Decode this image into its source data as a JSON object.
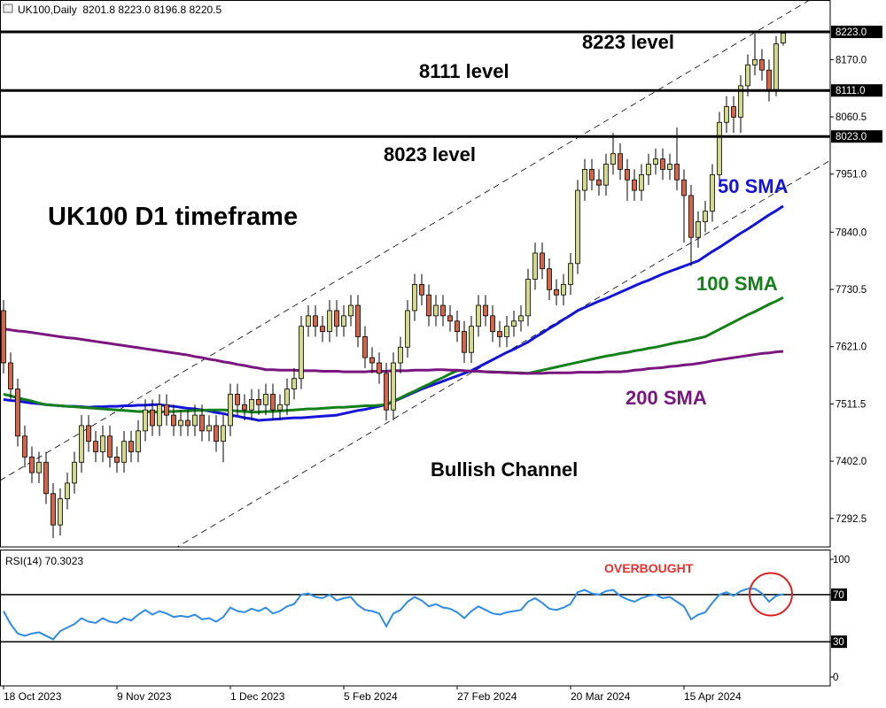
{
  "chart_data": {
    "type": "candlestick",
    "title": "UK100,Daily  8201.8 8223.0 8196.8 8220.5",
    "annotation": "UK100 D1 timeframe",
    "channel_label": "Bullish Channel",
    "categories": [
      "18 Oct 2023",
      null,
      null,
      null,
      null,
      null,
      null,
      null,
      null,
      null,
      null,
      null,
      null,
      null,
      null,
      null,
      "9 Nov 2023",
      null,
      null,
      null,
      null,
      null,
      null,
      null,
      null,
      null,
      null,
      null,
      null,
      null,
      null,
      null,
      "1 Dec 2023",
      null,
      null,
      null,
      null,
      null,
      null,
      null,
      null,
      null,
      null,
      null,
      null,
      null,
      null,
      null,
      "5 Feb 2024",
      null,
      null,
      null,
      null,
      null,
      null,
      null,
      null,
      null,
      null,
      null,
      null,
      null,
      null,
      null,
      "27 Feb 2024",
      null,
      null,
      null,
      null,
      null,
      null,
      null,
      null,
      null,
      null,
      null,
      null,
      null,
      null,
      null,
      "20 Mar 2024",
      null,
      null,
      null,
      null,
      null,
      null,
      null,
      null,
      null,
      null,
      null,
      null,
      null,
      null,
      null,
      "15 Apr 2024",
      null,
      null,
      null,
      null,
      null,
      null,
      null,
      null,
      null,
      null,
      null,
      null,
      null,
      null
    ],
    "open": [
      7690,
      7590,
      7540,
      7450,
      7410,
      7380,
      7400,
      7340,
      7280,
      7330,
      7360,
      7400,
      7470,
      7440,
      7420,
      7450,
      7410,
      7400,
      7440,
      7420,
      7460,
      7500,
      7470,
      7510,
      7490,
      7470,
      7480,
      7470,
      7490,
      7460,
      7470,
      7440,
      7470,
      7530,
      7510,
      7500,
      7520,
      7510,
      7530,
      7500,
      7510,
      7540,
      7560,
      7660,
      7680,
      7660,
      7650,
      7690,
      7660,
      7680,
      7700,
      7640,
      7600,
      7590,
      7570,
      7500,
      7590,
      7620,
      7690,
      7740,
      7720,
      7680,
      7700,
      7680,
      7670,
      7650,
      7610,
      7660,
      7700,
      7680,
      7650,
      7640,
      7660,
      7670,
      7680,
      7750,
      7800,
      7770,
      7730,
      7720,
      7740,
      7780,
      7920,
      7960,
      7940,
      7930,
      7970,
      7990,
      7960,
      7940,
      7920,
      7950,
      7970,
      7980,
      7960,
      7970,
      7940,
      7910,
      7830,
      7860,
      7880,
      7950,
      8050,
      8080,
      8060,
      8120,
      8160,
      8170,
      8150,
      8110,
      8201.8
    ],
    "high": [
      7710,
      7610,
      7560,
      7470,
      7430,
      7420,
      7420,
      7360,
      7350,
      7380,
      7420,
      7490,
      7490,
      7460,
      7470,
      7470,
      7430,
      7460,
      7460,
      7480,
      7520,
      7520,
      7530,
      7530,
      7510,
      7500,
      7500,
      7510,
      7510,
      7490,
      7490,
      7490,
      7550,
      7550,
      7530,
      7540,
      7540,
      7550,
      7550,
      7530,
      7560,
      7580,
      7680,
      7700,
      7700,
      7680,
      7710,
      7710,
      7700,
      7720,
      7720,
      7660,
      7620,
      7610,
      7590,
      7610,
      7640,
      7710,
      7760,
      7760,
      7740,
      7720,
      7720,
      7700,
      7690,
      7670,
      7680,
      7720,
      7720,
      7700,
      7670,
      7680,
      7690,
      7700,
      7770,
      7820,
      7820,
      7790,
      7750,
      7760,
      7800,
      7940,
      7980,
      7980,
      7960,
      7990,
      8030,
      8010,
      7980,
      7960,
      7970,
      7990,
      8000,
      8000,
      7990,
      8040,
      7960,
      7930,
      7880,
      7900,
      7970,
      8070,
      8100,
      8100,
      8140,
      8180,
      8220,
      8190,
      8170,
      8215,
      8223.0
    ],
    "low": [
      7570,
      7520,
      7430,
      7390,
      7360,
      7360,
      7320,
      7255,
      7260,
      7310,
      7340,
      7380,
      7420,
      7400,
      7400,
      7390,
      7380,
      7380,
      7400,
      7400,
      7440,
      7450,
      7450,
      7470,
      7450,
      7450,
      7450,
      7450,
      7440,
      7440,
      7420,
      7400,
      7450,
      7490,
      7480,
      7480,
      7490,
      7490,
      7480,
      7480,
      7490,
      7520,
      7540,
      7640,
      7640,
      7630,
      7630,
      7640,
      7640,
      7660,
      7620,
      7580,
      7570,
      7550,
      7480,
      7480,
      7570,
      7600,
      7670,
      7700,
      7660,
      7660,
      7660,
      7650,
      7630,
      7590,
      7590,
      7640,
      7660,
      7630,
      7620,
      7620,
      7640,
      7650,
      7660,
      7730,
      7750,
      7710,
      7700,
      7700,
      7720,
      7760,
      7900,
      7920,
      7910,
      7910,
      7950,
      7940,
      7900,
      7900,
      7900,
      7930,
      7950,
      7940,
      7940,
      7920,
      7820,
      7775,
      7810,
      7840,
      7860,
      7930,
      8030,
      8030,
      8030,
      8100,
      8140,
      8130,
      8090,
      8100,
      8196.8
    ],
    "close": [
      7590,
      7540,
      7450,
      7410,
      7380,
      7400,
      7340,
      7280,
      7330,
      7360,
      7400,
      7470,
      7440,
      7420,
      7450,
      7410,
      7400,
      7440,
      7420,
      7460,
      7500,
      7470,
      7510,
      7490,
      7470,
      7480,
      7470,
      7490,
      7460,
      7470,
      7440,
      7470,
      7530,
      7510,
      7500,
      7520,
      7510,
      7530,
      7500,
      7510,
      7540,
      7560,
      7660,
      7680,
      7660,
      7650,
      7690,
      7660,
      7680,
      7700,
      7640,
      7600,
      7590,
      7570,
      7500,
      7590,
      7620,
      7690,
      7740,
      7720,
      7680,
      7700,
      7680,
      7670,
      7650,
      7610,
      7660,
      7700,
      7680,
      7650,
      7640,
      7660,
      7670,
      7680,
      7750,
      7800,
      7770,
      7730,
      7720,
      7740,
      7780,
      7920,
      7960,
      7940,
      7930,
      7970,
      7990,
      7960,
      7940,
      7920,
      7950,
      7970,
      7980,
      7960,
      7970,
      7940,
      7910,
      7830,
      7860,
      7880,
      7950,
      8050,
      8080,
      8060,
      8120,
      8160,
      8170,
      8150,
      8110,
      8200,
      8220.5
    ],
    "up_color": "#d3d98a",
    "down_color": "#d2664a",
    "series": [
      {
        "name": "50 SMA",
        "color": "#1414d8",
        "values": [
          7520,
          7518,
          7517,
          7515,
          7513,
          7512,
          7510,
          7509,
          7508,
          7507,
          7507,
          7506,
          7505,
          7506,
          7506,
          7507,
          7507,
          7508,
          7508,
          7509,
          7509,
          7510,
          7510,
          7508,
          7507,
          7505,
          7503,
          7502,
          7500,
          7498,
          7495,
          7493,
          7490,
          7488,
          7485,
          7483,
          7480,
          7481,
          7482,
          7483,
          7484,
          7485,
          7485,
          7486,
          7487,
          7488,
          7489,
          7490,
          7493,
          7496,
          7499,
          7501,
          7504,
          7507,
          7510,
          7516,
          7522,
          7528,
          7534,
          7540,
          7545,
          7550,
          7555,
          7560,
          7565,
          7570,
          7575,
          7582,
          7589,
          7596,
          7603,
          7610,
          7616,
          7623,
          7630,
          7639,
          7647,
          7656,
          7664,
          7673,
          7681,
          7690,
          7696,
          7702,
          7708,
          7713,
          7719,
          7725,
          7731,
          7737,
          7743,
          7748,
          7754,
          7760,
          7765,
          7770,
          7775,
          7780,
          7785,
          7794,
          7803,
          7811,
          7820,
          7829,
          7838,
          7846,
          7855,
          7864,
          7873,
          7881,
          7890
        ]
      },
      {
        "name": "100 SMA",
        "color": "#14801a",
        "values": [
          7530,
          7527,
          7523,
          7520,
          7517,
          7513,
          7510,
          7509,
          7508,
          7507,
          7506,
          7505,
          7504,
          7503,
          7502,
          7501,
          7500,
          7499,
          7498,
          7497,
          7497,
          7496,
          7496,
          7497,
          7497,
          7498,
          7498,
          7499,
          7499,
          7500,
          7500,
          7500,
          7499,
          7498,
          7497,
          7496,
          7496,
          7497,
          7497,
          7498,
          7499,
          7500,
          7501,
          7502,
          7502,
          7503,
          7504,
          7505,
          7505,
          7506,
          7507,
          7508,
          7508,
          7509,
          7510,
          7517,
          7523,
          7530,
          7536,
          7543,
          7549,
          7556,
          7562,
          7569,
          7575,
          7575,
          7574,
          7574,
          7573,
          7573,
          7572,
          7572,
          7571,
          7571,
          7570,
          7573,
          7576,
          7579,
          7582,
          7585,
          7588,
          7591,
          7594,
          7597,
          7600,
          7603,
          7605,
          7608,
          7610,
          7613,
          7615,
          7618,
          7620,
          7623,
          7626,
          7629,
          7631,
          7634,
          7637,
          7640,
          7647,
          7654,
          7661,
          7668,
          7675,
          7682,
          7688,
          7695,
          7702,
          7708,
          7715
        ]
      },
      {
        "name": "200 SMA",
        "color": "#7a147e",
        "values": [
          7655,
          7653,
          7651,
          7650,
          7648,
          7646,
          7644,
          7642,
          7640,
          7638,
          7637,
          7635,
          7633,
          7631,
          7629,
          7627,
          7625,
          7623,
          7621,
          7619,
          7617,
          7615,
          7613,
          7611,
          7609,
          7607,
          7605,
          7602,
          7600,
          7597,
          7595,
          7592,
          7590,
          7587,
          7585,
          7582,
          7580,
          7577,
          7577,
          7576,
          7576,
          7576,
          7575,
          7575,
          7575,
          7574,
          7574,
          7574,
          7573,
          7573,
          7573,
          7573,
          7574,
          7574,
          7574,
          7575,
          7575,
          7575,
          7576,
          7576,
          7576,
          7577,
          7577,
          7576,
          7576,
          7575,
          7574,
          7574,
          7573,
          7572,
          7572,
          7571,
          7571,
          7570,
          7570,
          7570,
          7570,
          7571,
          7571,
          7571,
          7571,
          7572,
          7572,
          7572,
          7572,
          7573,
          7573,
          7573,
          7574,
          7576,
          7577,
          7579,
          7580,
          7581,
          7583,
          7584,
          7586,
          7587,
          7589,
          7591,
          7594,
          7596,
          7598,
          7600,
          7602,
          7604,
          7606,
          7608,
          7609,
          7611,
          7612
        ]
      }
    ],
    "levels": [
      {
        "value": 8223,
        "label": "8223.0",
        "text": "8223 level"
      },
      {
        "value": 8111,
        "label": "8111.0",
        "text": "8111 level"
      },
      {
        "value": 8023,
        "label": "8023.0",
        "text": "8023 level"
      }
    ],
    "channel": [
      {
        "start": [
          0,
          7369
        ],
        "end": [
          110,
          8254
        ]
      },
      {
        "start": [
          25,
          7242
        ],
        "end": [
          110,
          7924
        ]
      }
    ],
    "ylim": [
      7238,
      8284
    ],
    "yticks": [
      {
        "value": 8170,
        "label": "8170.0"
      },
      8060.5,
      {
        "value": 7951,
        "label": "7951.0"
      },
      {
        "value": 7840,
        "label": "7840.0"
      },
      7730.5,
      {
        "value": 7621,
        "label": "7621.0"
      },
      7511.5,
      {
        "value": 7402,
        "label": "7402.0"
      },
      7292.5
    ],
    "indicator": {
      "type": "line",
      "title": "RSI(14) 70.3023",
      "color": "#2e8be6",
      "note": "OVERBOUGHT",
      "values": [
        56,
        45,
        37,
        35,
        37,
        38,
        35,
        32,
        39,
        42,
        45,
        50,
        47,
        46,
        50,
        47,
        46,
        50,
        48,
        53,
        57,
        53,
        56,
        54,
        51,
        52,
        51,
        53,
        49,
        50,
        47,
        51,
        59,
        56,
        55,
        58,
        56,
        59,
        54,
        56,
        60,
        62,
        70,
        71,
        68,
        67,
        70,
        65,
        67,
        68,
        61,
        57,
        56,
        54,
        43,
        54,
        57,
        64,
        68,
        65,
        60,
        62,
        59,
        58,
        55,
        50,
        56,
        60,
        57,
        54,
        53,
        55,
        56,
        57,
        64,
        67,
        63,
        58,
        57,
        59,
        62,
        72,
        74,
        71,
        70,
        73,
        74,
        69,
        66,
        64,
        67,
        69,
        70,
        67,
        68,
        64,
        60,
        49,
        53,
        55,
        63,
        70,
        72,
        69,
        73,
        75,
        75,
        71,
        64,
        69,
        70.3023
      ],
      "ylim": [
        -7.5,
        107.5
      ],
      "yticks": [
        100,
        70,
        30,
        0
      ],
      "levels": [
        70,
        30
      ]
    }
  }
}
